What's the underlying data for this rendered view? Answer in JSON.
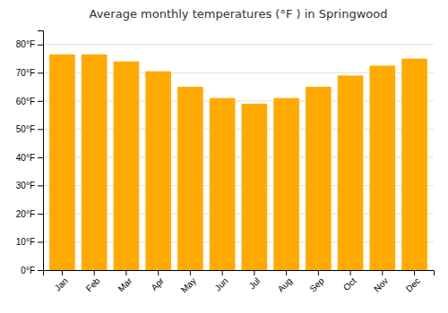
{
  "chart_data": {
    "type": "bar",
    "title": "Average monthly temperatures (°F ) in Springwood",
    "categories": [
      "Jan",
      "Feb",
      "Mar",
      "Apr",
      "May",
      "Jun",
      "Jul",
      "Aug",
      "Sep",
      "Oct",
      "Nov",
      "Dec"
    ],
    "values": [
      76.5,
      76.5,
      74.0,
      70.5,
      65.0,
      61.0,
      59.0,
      61.0,
      65.0,
      69.0,
      72.5,
      75.0
    ],
    "color": "#FFAA00",
    "ylim": [
      0,
      85
    ],
    "yticks": [
      {
        "value": 0,
        "label": "0°F"
      },
      {
        "value": 10,
        "label": "10°F"
      },
      {
        "value": 20,
        "label": "20°F"
      },
      {
        "value": 30,
        "label": "30°F"
      },
      {
        "value": 40,
        "label": "40°F"
      },
      {
        "value": 50,
        "label": "50°F"
      },
      {
        "value": 60,
        "label": "60°F"
      },
      {
        "value": 70,
        "label": "70°F"
      },
      {
        "value": 80,
        "label": "80°F"
      }
    ],
    "grid": true
  }
}
